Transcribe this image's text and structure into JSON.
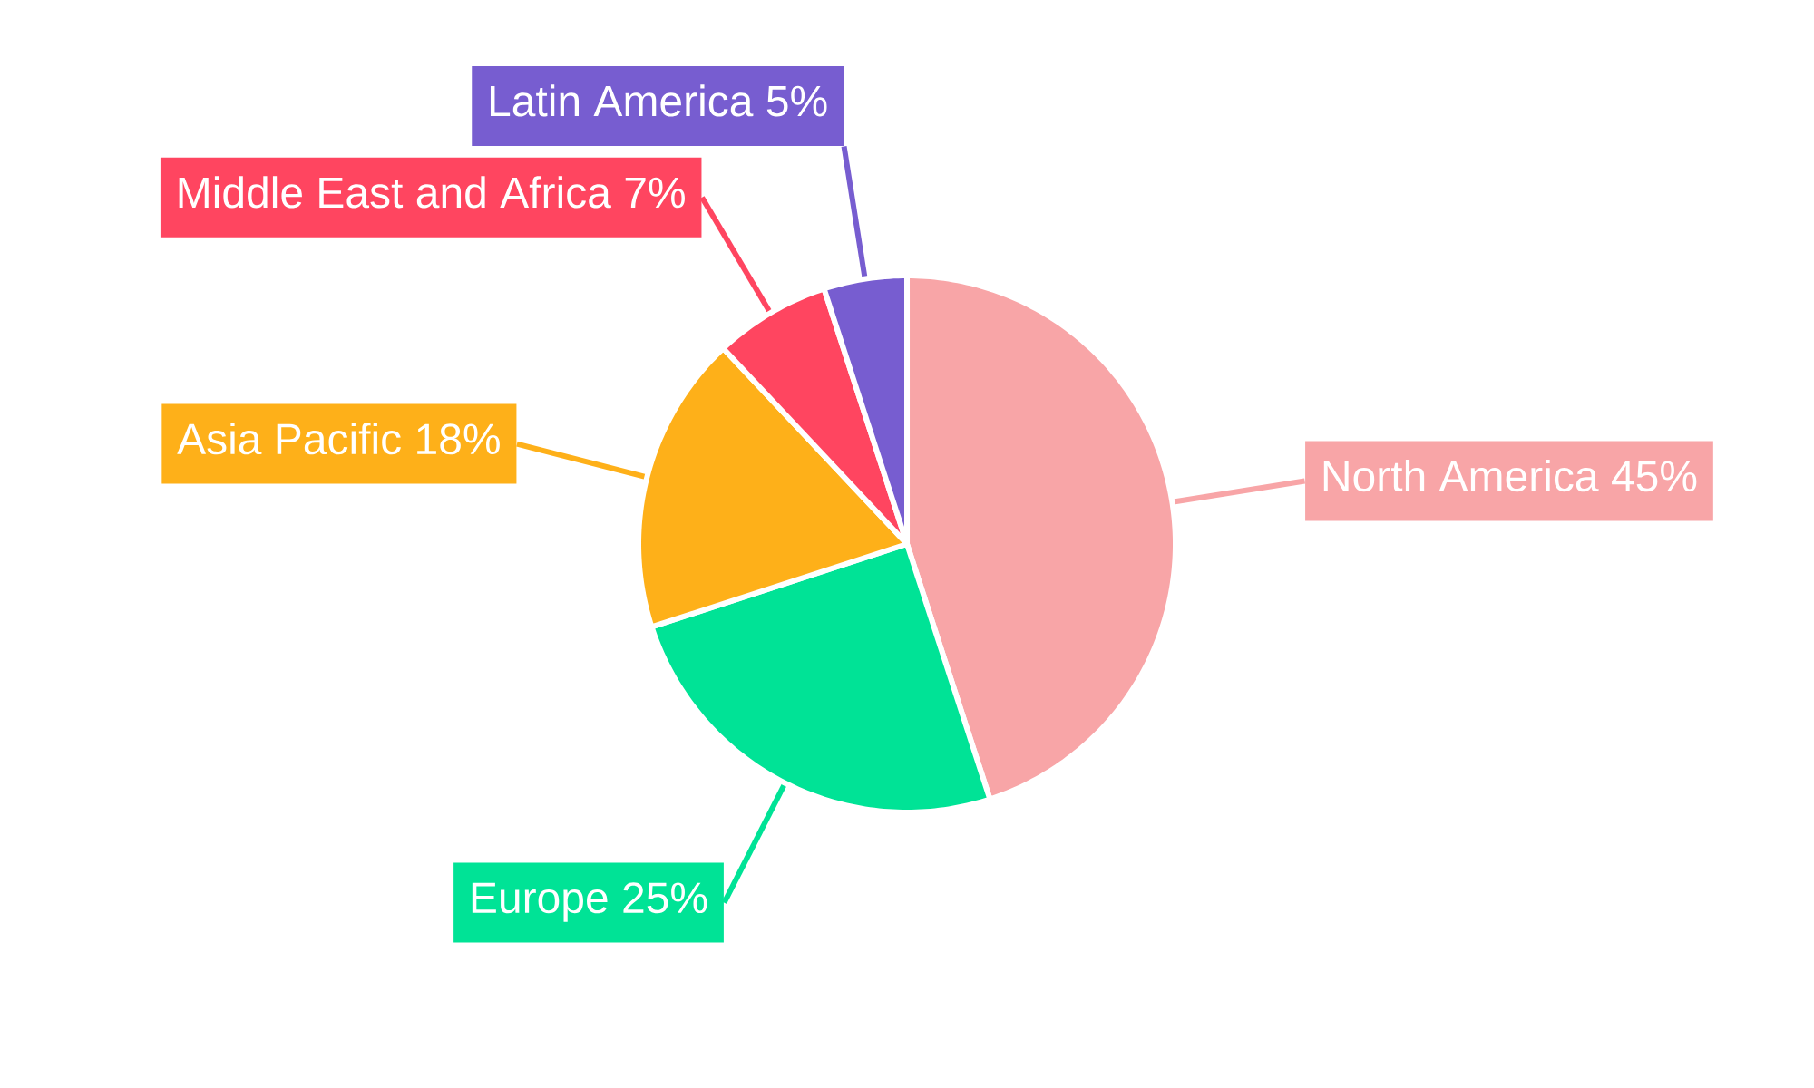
{
  "chart_data": {
    "type": "pie",
    "categories": [
      "North America",
      "Europe",
      "Asia Pacific",
      "Middle East and Africa",
      "Latin America"
    ],
    "values": [
      45,
      25,
      18,
      7,
      5
    ],
    "colors": [
      "#f8a5a7",
      "#00e396",
      "#feb019",
      "#ff4560",
      "#775dd0"
    ],
    "value_labels": [
      "45%",
      "25%",
      "18%",
      "7%",
      "5%"
    ]
  }
}
